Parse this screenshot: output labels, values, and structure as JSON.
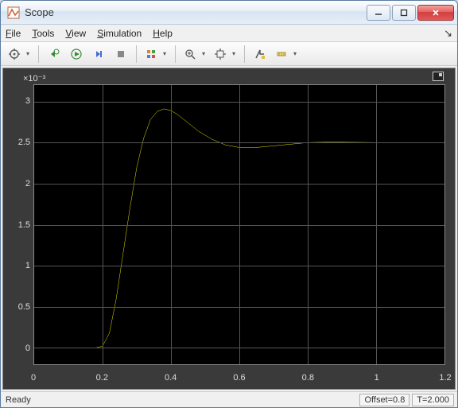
{
  "window": {
    "title": "Scope"
  },
  "menu": {
    "items": [
      {
        "label": "File",
        "accel": "F"
      },
      {
        "label": "Tools",
        "accel": "T"
      },
      {
        "label": "View",
        "accel": "V"
      },
      {
        "label": "Simulation",
        "accel": "S"
      },
      {
        "label": "Help",
        "accel": "H"
      }
    ]
  },
  "status": {
    "ready": "Ready",
    "offset": "Offset=0.8",
    "time": "T=2.000"
  },
  "chart": {
    "type": "line",
    "background_color": "#000000",
    "figure_background": "#3a3a3a",
    "grid_color": "#555555",
    "axis_text_color": "#dddddd",
    "line_color": "#e6e600",
    "line_width": 1.5,
    "y_exponent": "×10⁻³",
    "xlim": [
      0,
      1.2
    ],
    "ylim": [
      -0.2,
      3.2
    ],
    "xticks": [
      0,
      0.2,
      0.4,
      0.6,
      0.8,
      1.0,
      1.2
    ],
    "xtick_labels": [
      "0",
      "0.2",
      "0.4",
      "0.6",
      "0.8",
      "1",
      "1.2"
    ],
    "yticks": [
      0,
      0.5,
      1.0,
      1.5,
      2.0,
      2.5,
      3.0
    ],
    "ytick_labels": [
      "0",
      "0.5",
      "1",
      "1.5",
      "2",
      "2.5",
      "3"
    ],
    "series": {
      "x": [
        0.0,
        0.05,
        0.1,
        0.15,
        0.18,
        0.2,
        0.22,
        0.24,
        0.26,
        0.28,
        0.3,
        0.32,
        0.34,
        0.36,
        0.38,
        0.4,
        0.42,
        0.45,
        0.48,
        0.52,
        0.56,
        0.6,
        0.65,
        0.7,
        0.75,
        0.8,
        0.85,
        0.9,
        1.0,
        1.1,
        1.2
      ],
      "y": [
        0.0,
        0.0,
        0.0,
        0.0,
        0.0,
        0.02,
        0.18,
        0.6,
        1.15,
        1.7,
        2.2,
        2.55,
        2.78,
        2.88,
        2.91,
        2.89,
        2.84,
        2.74,
        2.64,
        2.54,
        2.47,
        2.44,
        2.44,
        2.46,
        2.48,
        2.5,
        2.505,
        2.505,
        2.5,
        2.5,
        2.5
      ]
    }
  }
}
